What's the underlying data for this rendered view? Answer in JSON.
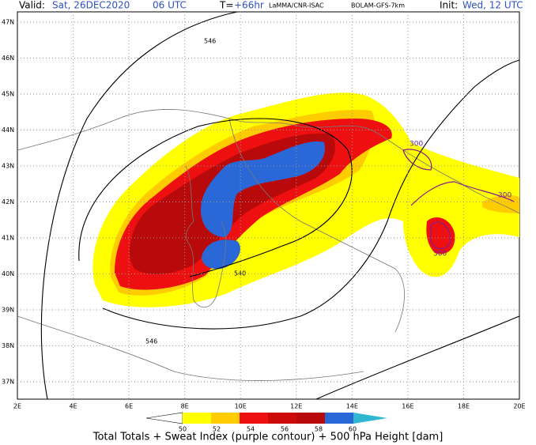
{
  "header": {
    "valid_label": "Valid:",
    "valid_date": "Sat, 26DEC2020",
    "valid_time": "06 UTC",
    "lead_label": "T=",
    "lead_value": "+66hr",
    "source": "LaMMA/CNR-ISAC",
    "model": "BOLAM-GFS-7km",
    "init_label": "Init:",
    "init_value": "Wed, 12 UTC"
  },
  "map": {
    "lat_labels": [
      "47N",
      "46N",
      "45N",
      "44N",
      "43N",
      "42N",
      "41N",
      "40N",
      "39N",
      "38N",
      "37N"
    ],
    "lon_labels": [
      "2E",
      "4E",
      "6E",
      "8E",
      "10E",
      "12E",
      "14E",
      "16E",
      "18E",
      "20E"
    ],
    "contour_labels": [
      "546",
      "540",
      "546",
      "300",
      "300",
      "300"
    ]
  },
  "colorbar": {
    "ticks": [
      50,
      52,
      54,
      56,
      58,
      60
    ]
  },
  "caption": "Total Totals + Sweat Index (purple contour) + 500 hPa Height [dam]"
}
